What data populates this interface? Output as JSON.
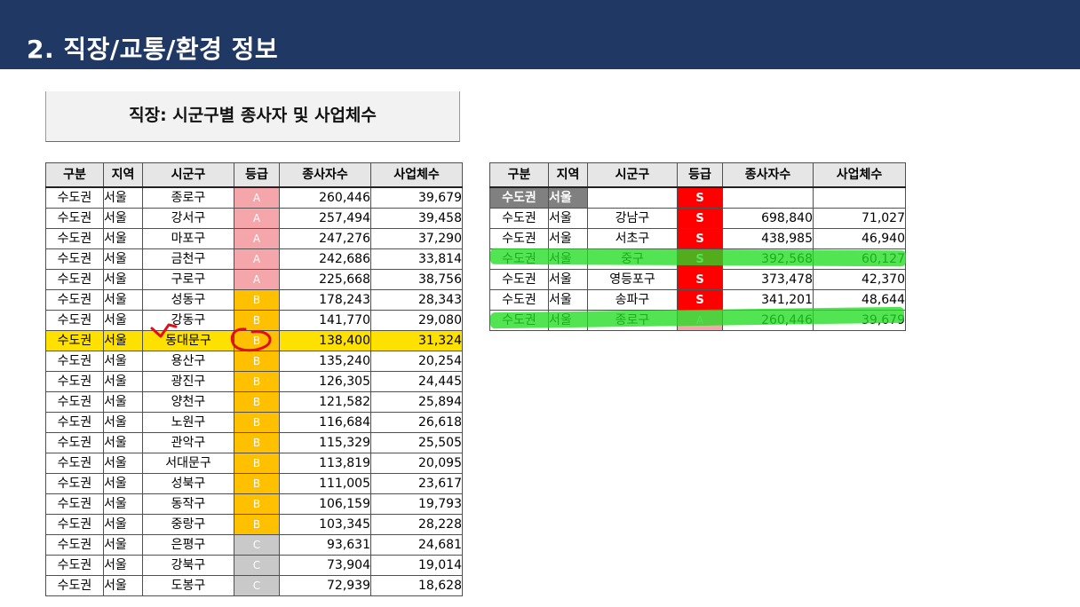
{
  "header": {
    "title": "2. 직장/교통/환경 정보"
  },
  "left_panel": {
    "title": "직장: 시군구별 종사자 및 사업체수",
    "columns": [
      "구분",
      "지역",
      "시군구",
      "등급",
      "종사자수",
      "사업체수"
    ],
    "rows": [
      [
        "수도권",
        "서울",
        "종로구",
        "A",
        "260,446",
        "39,679"
      ],
      [
        "수도권",
        "서울",
        "강서구",
        "A",
        "257,494",
        "39,458"
      ],
      [
        "수도권",
        "서울",
        "마포구",
        "A",
        "247,276",
        "37,290"
      ],
      [
        "수도권",
        "서울",
        "금천구",
        "A",
        "242,686",
        "33,814"
      ],
      [
        "수도권",
        "서울",
        "구로구",
        "A",
        "225,668",
        "38,756"
      ],
      [
        "수도권",
        "서울",
        "성동구",
        "B",
        "178,243",
        "28,343"
      ],
      [
        "수도권",
        "서울",
        "강동구",
        "B",
        "141,770",
        "29,080"
      ],
      [
        "수도권",
        "서울",
        "동대문구",
        "B",
        "138,400",
        "31,324"
      ],
      [
        "수도권",
        "서울",
        "용산구",
        "B",
        "135,240",
        "20,254"
      ],
      [
        "수도권",
        "서울",
        "광진구",
        "B",
        "126,305",
        "24,445"
      ],
      [
        "수도권",
        "서울",
        "양천구",
        "B",
        "121,582",
        "25,894"
      ],
      [
        "수도권",
        "서울",
        "노원구",
        "B",
        "116,684",
        "26,618"
      ],
      [
        "수도권",
        "서울",
        "관악구",
        "B",
        "115,329",
        "25,505"
      ],
      [
        "수도권",
        "서울",
        "서대문구",
        "B",
        "113,819",
        "20,095"
      ],
      [
        "수도권",
        "서울",
        "성북구",
        "B",
        "111,005",
        "23,617"
      ],
      [
        "수도권",
        "서울",
        "동작구",
        "B",
        "106,159",
        "19,793"
      ],
      [
        "수도권",
        "서울",
        "중랑구",
        "B",
        "103,345",
        "28,228"
      ],
      [
        "수도권",
        "서울",
        "은평구",
        "C",
        "93,631",
        "24,681"
      ],
      [
        "수도권",
        "서울",
        "강북구",
        "C",
        "73,904",
        "19,014"
      ],
      [
        "수도권",
        "서울",
        "도봉구",
        "C",
        "72,939",
        "18,628"
      ]
    ],
    "highlighted_row": "동대문구"
  },
  "right_panel": {
    "columns": [
      "구분",
      "지역",
      "시군구",
      "등급",
      "종사자수",
      "사업체수"
    ],
    "group_row": [
      "수도권",
      "서울",
      "",
      "S",
      "",
      ""
    ],
    "rows": [
      [
        "수도권",
        "서울",
        "강남구",
        "S",
        "698,840",
        "71,027"
      ],
      [
        "수도권",
        "서울",
        "서초구",
        "S",
        "438,985",
        "46,940"
      ],
      [
        "수도권",
        "서울",
        "중구",
        "S",
        "392,568",
        "60,127"
      ],
      [
        "수도권",
        "서울",
        "영등포구",
        "S",
        "373,478",
        "42,370"
      ],
      [
        "수도권",
        "서울",
        "송파구",
        "S",
        "341,201",
        "48,644"
      ],
      [
        "수도권",
        "서울",
        "종로구",
        "A",
        "260,446",
        "39,679"
      ]
    ],
    "highlighted_rows": [
      "중구",
      "종로구"
    ]
  },
  "colors": {
    "header_bg": "#1f3864",
    "grade_A": "#f4a6aa",
    "grade_B": "#ffc000",
    "grade_C": "#c9c9c9",
    "grade_S": "#ff0000",
    "row_highlight_yellow": "#ffe100",
    "marker_green": "#22dd22",
    "pen_red": "#e0101a"
  }
}
